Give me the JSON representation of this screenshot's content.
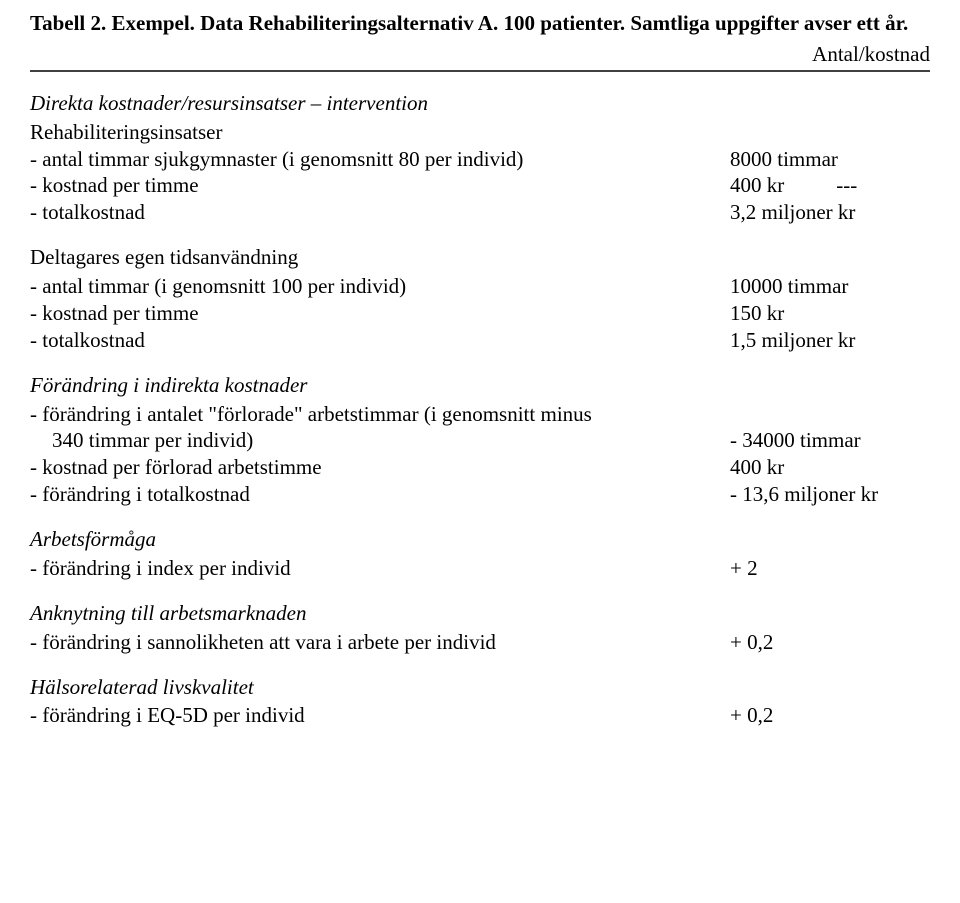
{
  "title": "Tabell 2. Exempel. Data Rehabiliteringsalternativ A. 100 patienter. Samtliga uppgifter avser ett år.",
  "header_right": "Antal/kostnad",
  "sections": {
    "s1": {
      "heading": "Direkta kostnader/resursinsatser – intervention",
      "subheading": "Rehabiliteringsinsatser",
      "rows": {
        "r1": {
          "label": "- antal timmar sjukgymnaster (i genomsnitt 80 per individ)",
          "value": "8000 timmar"
        },
        "r2": {
          "label": "- kostnad per timme",
          "value": "400 kr",
          "extra": "---"
        },
        "r3": {
          "label": "- totalkostnad",
          "value": "3,2 miljoner kr"
        }
      }
    },
    "s2": {
      "heading": "Deltagares egen tidsanvändning",
      "rows": {
        "r1": {
          "label": "- antal timmar (i genomsnitt 100 per individ)",
          "value": "10000 timmar"
        },
        "r2": {
          "label": "- kostnad per timme",
          "value": "150 kr"
        },
        "r3": {
          "label": "- totalkostnad",
          "value": "1,5 miljoner kr"
        }
      }
    },
    "s3": {
      "heading": "Förändring i indirekta kostnader",
      "rows": {
        "r1a": {
          "label": "- förändring i antalet \"förlorade\" arbetstimmar (i genomsnitt minus"
        },
        "r1b": {
          "label": "340 timmar per individ)",
          "value": "- 34000 timmar"
        },
        "r2": {
          "label": "- kostnad per förlorad arbetstimme",
          "value": "400 kr"
        },
        "r3": {
          "label": "- förändring i totalkostnad",
          "value": "- 13,6 miljoner kr"
        }
      }
    },
    "s4": {
      "heading": "Arbetsförmåga",
      "rows": {
        "r1": {
          "label": "- förändring i index per individ",
          "value": "+ 2"
        }
      }
    },
    "s5": {
      "heading": "Anknytning till arbetsmarknaden",
      "rows": {
        "r1": {
          "label": "- förändring i sannolikheten att vara i arbete per individ",
          "value": "+ 0,2"
        }
      }
    },
    "s6": {
      "heading": "Hälsorelaterad livskvalitet",
      "rows": {
        "r1": {
          "label": "- förändring i EQ-5D per individ",
          "value": "+ 0,2"
        }
      }
    }
  }
}
